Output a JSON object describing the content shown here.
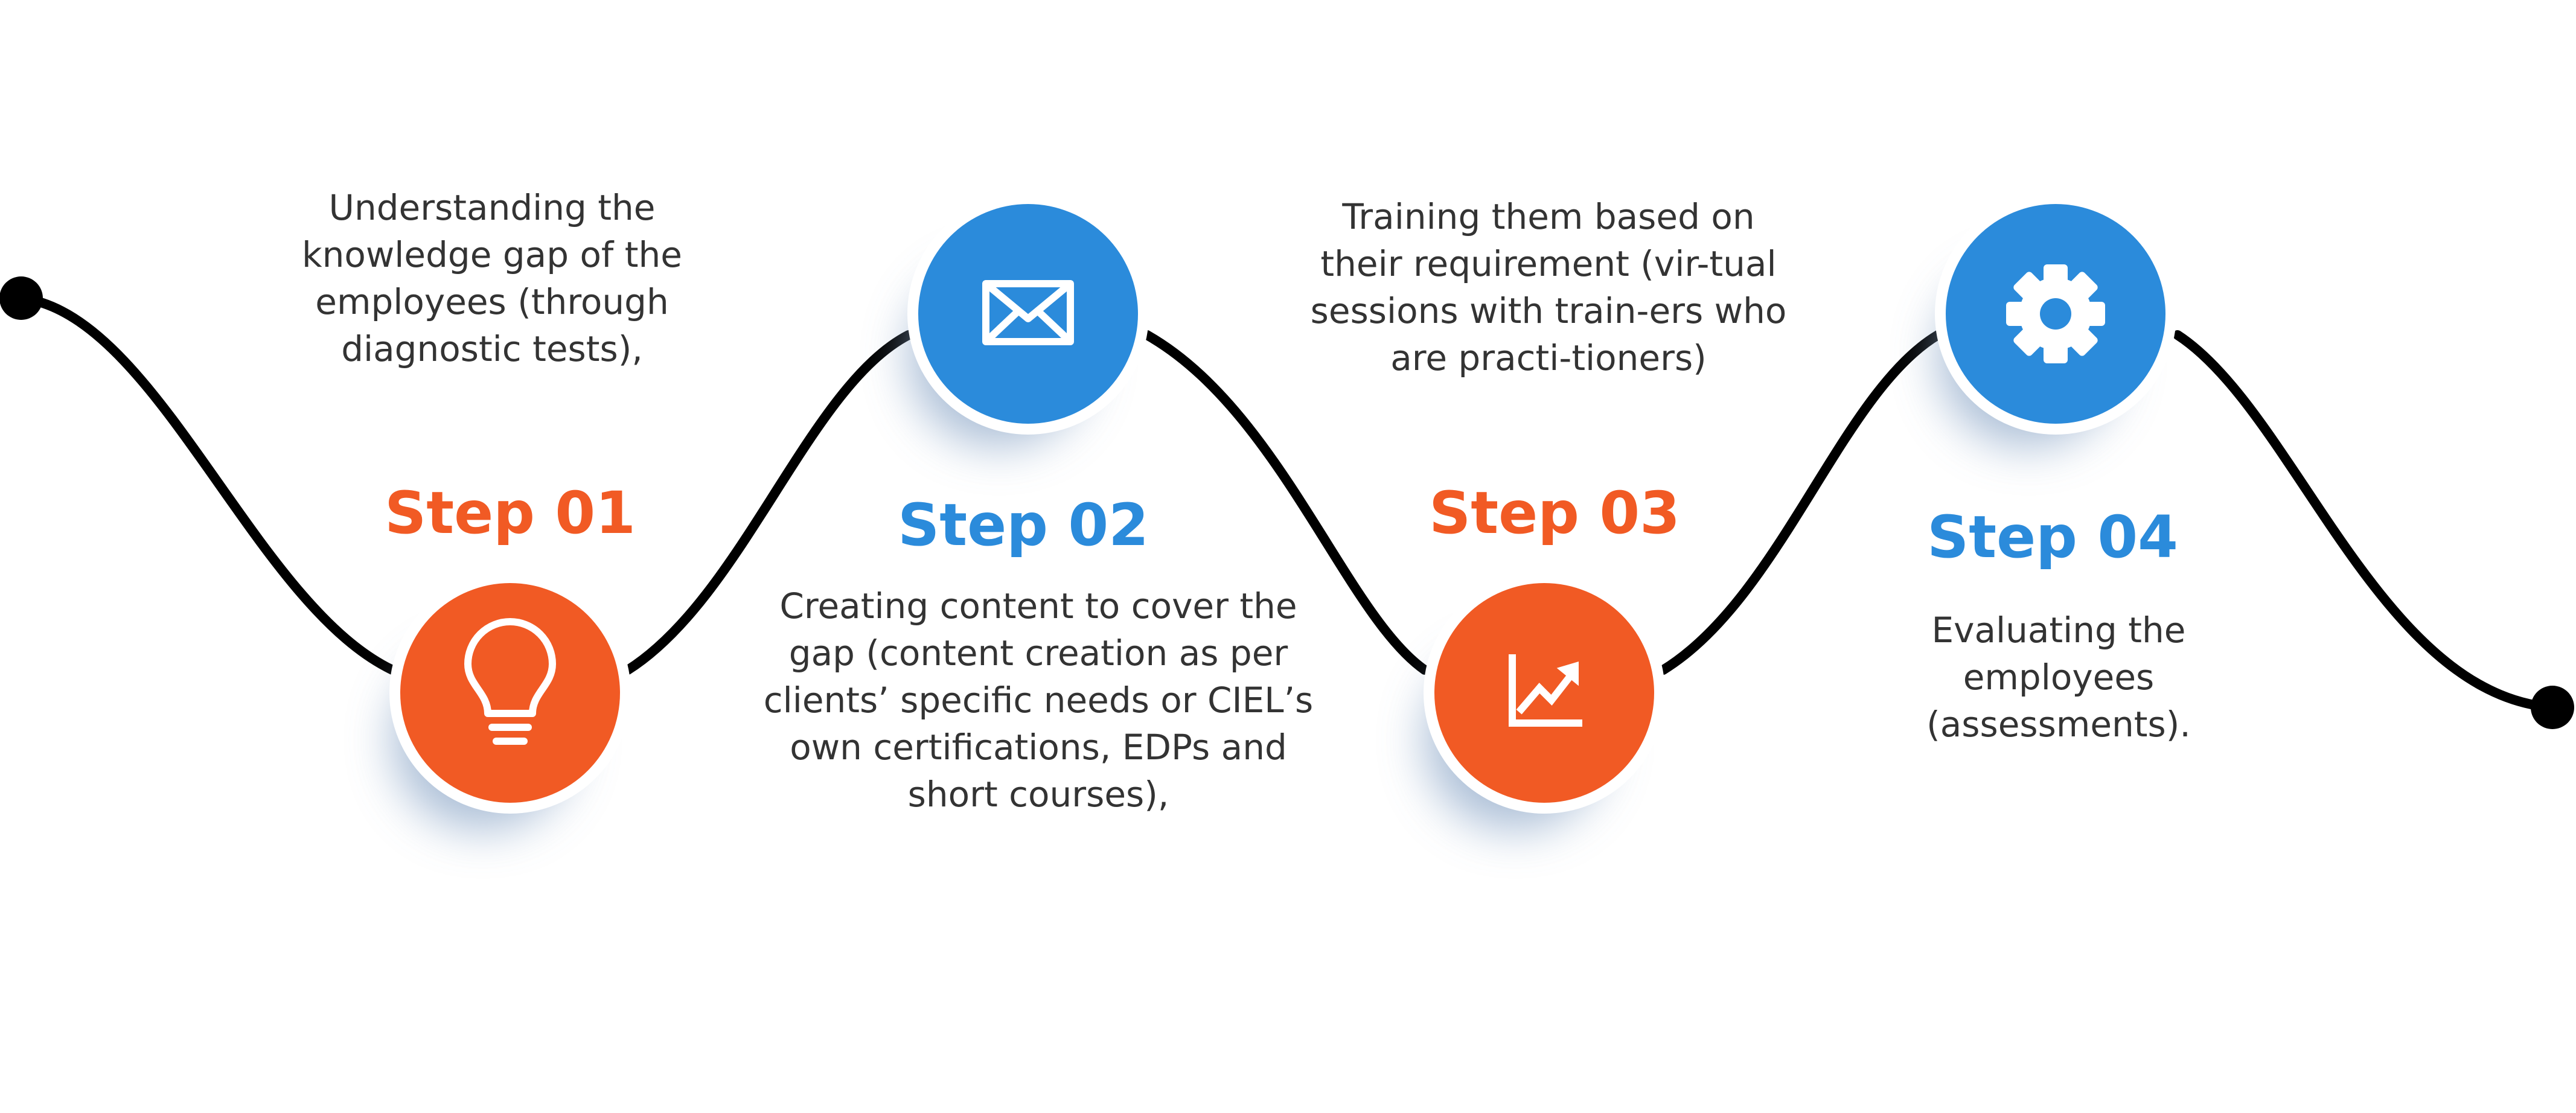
{
  "colors": {
    "orange": "#F15A24",
    "blue": "#2B8BDB",
    "path": "#000000",
    "text": "#333333",
    "shadow": "#8FA9C9"
  },
  "steps": [
    {
      "title": "Step 01",
      "color": "orange",
      "icon": "lightbulb-icon",
      "description": "Understanding the knowledge gap of the employees (through diagnostic tests),"
    },
    {
      "title": "Step 02",
      "color": "blue",
      "icon": "envelope-icon",
      "description": "Creating content to cover the gap (content creation as per clients’ specific needs or CIEL’s own certifications, EDPs and short courses),"
    },
    {
      "title": "Step 03",
      "color": "orange",
      "icon": "growth-chart-icon",
      "description": "Training them based on their requirement (vir-tual sessions with train-ers who are practi-tioners)"
    },
    {
      "title": "Step 04",
      "color": "blue",
      "icon": "gear-icon",
      "description": "Evaluating the employees (assessments)."
    }
  ]
}
